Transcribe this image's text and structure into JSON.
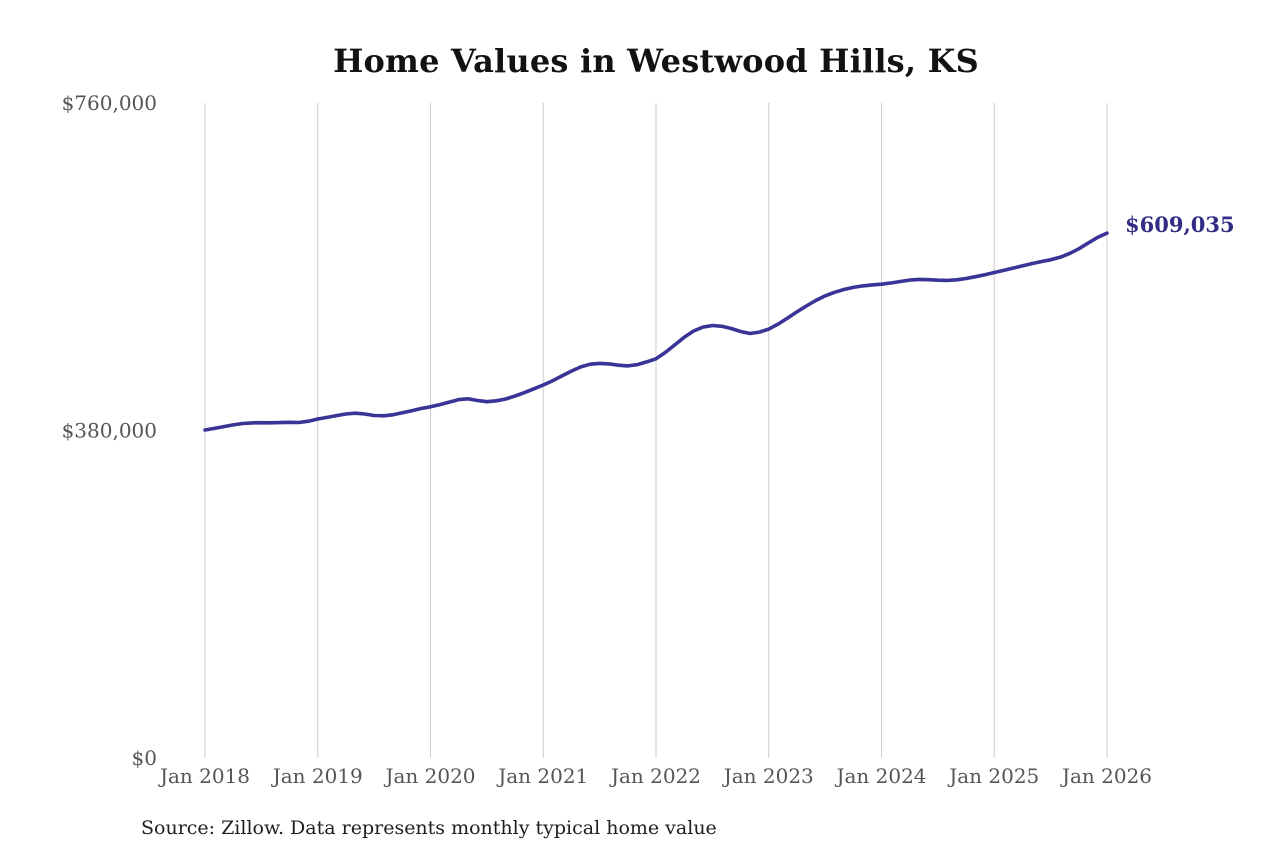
{
  "chart_data": {
    "type": "line",
    "title": "Home Values in Westwood Hills, KS",
    "series_name": "Monthly typical home value",
    "end_label": "$609,035",
    "latest_value": 609035,
    "xlabel": "",
    "ylabel": "",
    "ylim": [
      0,
      760000
    ],
    "gridlines": "vertical-yearly-only",
    "legend": "none",
    "y_ticks": [
      {
        "label": "$0",
        "value": 0
      },
      {
        "label": "$380,000",
        "value": 380000
      },
      {
        "label": "$760,000",
        "value": 760000
      }
    ],
    "x_tick_labels": [
      "Jan 2018",
      "Jan 2019",
      "Jan 2020",
      "Jan 2021",
      "Jan 2022",
      "Jan 2023",
      "Jan 2024",
      "Jan 2025",
      "Jan 2026"
    ],
    "months": [
      "2018-01",
      "2018-02",
      "2018-03",
      "2018-04",
      "2018-05",
      "2018-06",
      "2018-07",
      "2018-08",
      "2018-09",
      "2018-10",
      "2018-11",
      "2018-12",
      "2019-01",
      "2019-02",
      "2019-03",
      "2019-04",
      "2019-05",
      "2019-06",
      "2019-07",
      "2019-08",
      "2019-09",
      "2019-10",
      "2019-11",
      "2019-12",
      "2020-01",
      "2020-02",
      "2020-03",
      "2020-04",
      "2020-05",
      "2020-06",
      "2020-07",
      "2020-08",
      "2020-09",
      "2020-10",
      "2020-11",
      "2020-12",
      "2021-01",
      "2021-02",
      "2021-03",
      "2021-04",
      "2021-05",
      "2021-06",
      "2021-07",
      "2021-08",
      "2021-09",
      "2021-10",
      "2021-11",
      "2021-12",
      "2022-01",
      "2022-02",
      "2022-03",
      "2022-04",
      "2022-05",
      "2022-06",
      "2022-07",
      "2022-08",
      "2022-09",
      "2022-10",
      "2022-11",
      "2022-12",
      "2023-01",
      "2023-02",
      "2023-03",
      "2023-04",
      "2023-05",
      "2023-06",
      "2023-07",
      "2023-08",
      "2023-09",
      "2023-10",
      "2023-11",
      "2023-12",
      "2024-01",
      "2024-02",
      "2024-03",
      "2024-04",
      "2024-05",
      "2024-06",
      "2024-07",
      "2024-08",
      "2024-09",
      "2024-10",
      "2024-11",
      "2024-12",
      "2025-01",
      "2025-02",
      "2025-03",
      "2025-04",
      "2025-05",
      "2025-06",
      "2025-07",
      "2025-08",
      "2025-09",
      "2025-10",
      "2025-11",
      "2025-12",
      "2026-01"
    ],
    "values": [
      380600,
      382400,
      384500,
      386500,
      388100,
      388800,
      389000,
      388900,
      389200,
      389500,
      389300,
      390800,
      393300,
      395200,
      397300,
      399200,
      400100,
      399200,
      397400,
      397000,
      398200,
      400500,
      403000,
      405500,
      407500,
      410000,
      413000,
      415800,
      416800,
      414800,
      413400,
      414500,
      416600,
      420000,
      424000,
      428400,
      432800,
      437800,
      443300,
      448900,
      453800,
      456900,
      457900,
      457300,
      455800,
      454900,
      456400,
      459600,
      463200,
      470600,
      479300,
      488100,
      495400,
      500000,
      501800,
      500900,
      498300,
      494900,
      492500,
      494200,
      497700,
      503500,
      510400,
      517600,
      524500,
      530800,
      536200,
      540400,
      543600,
      546000,
      547800,
      548900,
      549700,
      551100,
      552900,
      554500,
      555300,
      555000,
      554400,
      554200,
      554900,
      556400,
      558500,
      560800,
      563300,
      565800,
      568400,
      571000,
      573600,
      576000,
      578100,
      581000,
      585200,
      590800,
      597500,
      604000,
      609035
    ],
    "colors": {
      "line": "#3a3496",
      "end_label": "#322e86",
      "grid": "#cccccc",
      "tick_text": "#535559",
      "title": "#121212",
      "source": "#1e1e1e"
    }
  },
  "source": {
    "text": "Source: Zillow. Data represents monthly typical home value"
  }
}
